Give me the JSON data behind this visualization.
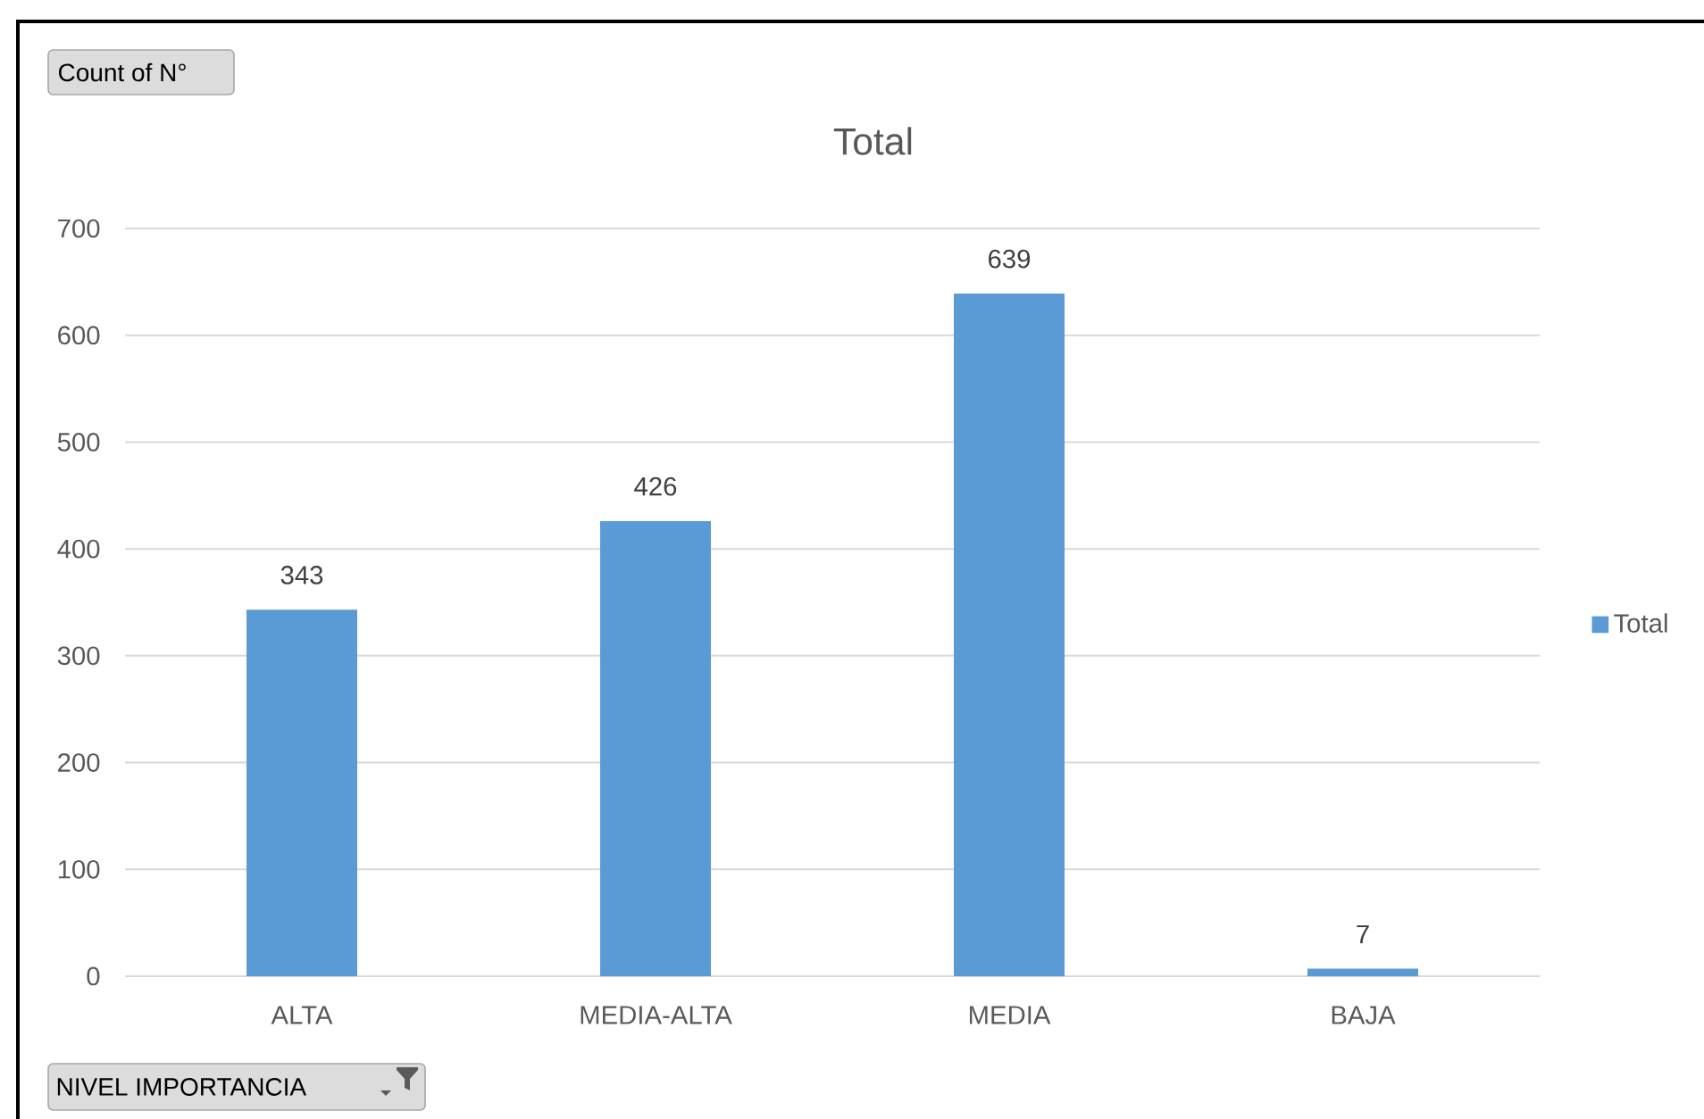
{
  "chart_data": {
    "type": "bar",
    "title": "Total",
    "xlabel": "NIVEL IMPORTANCIA",
    "annotations": [
      "Count of N°"
    ],
    "categories": [
      "ALTA",
      "MEDIA-ALTA",
      "MEDIA",
      "BAJA"
    ],
    "series": [
      {
        "name": "Total",
        "color": "#5b9bd5",
        "values": [
          343,
          426,
          639,
          7
        ]
      }
    ],
    "ylim": [
      0,
      700
    ],
    "yticks": [
      0,
      100,
      200,
      300,
      400,
      500,
      600,
      700
    ],
    "grid": "y",
    "legend": "right",
    "data_labels": true
  }
}
